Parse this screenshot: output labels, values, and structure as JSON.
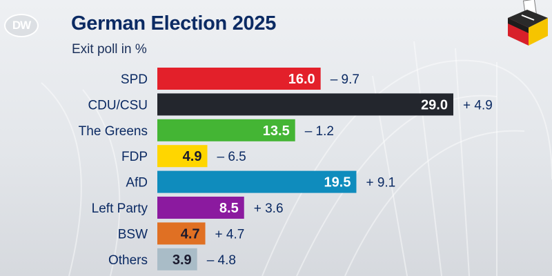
{
  "header": {
    "logo_text": "DW",
    "title": "German Election 2025",
    "subtitle": "Exit poll in %"
  },
  "icons": {
    "ballot_box": "ballot-box-icon"
  },
  "chart_data": {
    "type": "bar",
    "orientation": "horizontal",
    "title": "German Election 2025",
    "subtitle": "Exit poll in %",
    "categories": [
      "SPD",
      "CDU/CSU",
      "The Greens",
      "FDP",
      "AfD",
      "Left Party",
      "BSW",
      "Others"
    ],
    "values": [
      16.0,
      29.0,
      13.5,
      4.9,
      19.5,
      8.5,
      4.7,
      3.9
    ],
    "value_labels": [
      "16.0",
      "29.0",
      "13.5",
      "4.9",
      "19.5",
      "8.5",
      "4.7",
      "3.9"
    ],
    "change_labels": [
      "– 9.7",
      "+ 4.9",
      "– 1.2",
      "– 6.5",
      "+ 9.1",
      "+ 3.6",
      "+ 4.7",
      "– 4.8"
    ],
    "colors": [
      "#e3202a",
      "#23262d",
      "#44b534",
      "#ffd600",
      "#0f8cbd",
      "#8b1a9f",
      "#e07023",
      "#a9bcc7"
    ],
    "value_label_colors": [
      "#ffffff",
      "#ffffff",
      "#ffffff",
      "#1a1a2e",
      "#ffffff",
      "#ffffff",
      "#1a1a2e",
      "#1a1a2e"
    ],
    "xlim": [
      0,
      29.0
    ],
    "grid": false,
    "legend": "none"
  }
}
